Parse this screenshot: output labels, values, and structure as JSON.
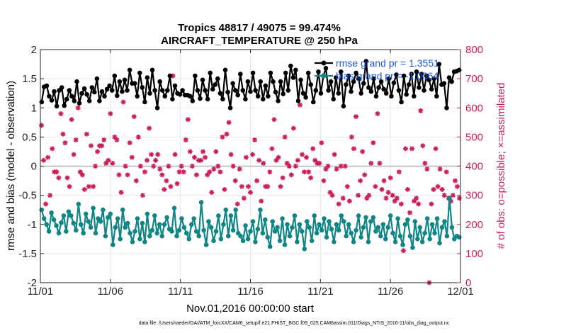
{
  "chart_data": {
    "type": "line",
    "title_line1": "Tropics 48817 / 49075 = 99.474%",
    "title_line2": "AIRCRAFT_TEMPERATURE @ 250 hPa",
    "xlabel": "Nov.01,2016 00:00:00 start",
    "ylabel_left": "rmse and bias (model - observation)",
    "ylabel_right": "# of obs: o=possible; ×=assimilated",
    "x_range": [
      0,
      30
    ],
    "ylim_left": [
      -2,
      2
    ],
    "ylim_right": [
      0,
      800
    ],
    "x_ticks": [
      {
        "value": 0,
        "label": "11/01"
      },
      {
        "value": 5,
        "label": "11/06"
      },
      {
        "value": 10,
        "label": "11/11"
      },
      {
        "value": 15,
        "label": "11/16"
      },
      {
        "value": 20,
        "label": "11/21"
      },
      {
        "value": 25,
        "label": "11/26"
      },
      {
        "value": 30,
        "label": "12/01"
      }
    ],
    "y_ticks_left": [
      "-2",
      "-1.5",
      "-1",
      "-0.5",
      "0",
      "0.5",
      "1",
      "1.5",
      "2"
    ],
    "y_ticks_right": [
      "0",
      "100",
      "200",
      "300",
      "400",
      "500",
      "600",
      "700",
      "800"
    ],
    "zero_line": 0,
    "colors": {
      "rmse": "#000000",
      "bias": "#0f8585",
      "obs": "#cc1f5a",
      "legend_text": "#1a57d6",
      "grid": "#e2e2e2",
      "zero": "#b0b0b0"
    },
    "series": [
      {
        "name": "rmse grand pr = 1.3551",
        "role": "rmse",
        "values": [
          1.1,
          1.36,
          1.38,
          1.2,
          1.13,
          1.28,
          1.03,
          1.3,
          1.35,
          1.04,
          1.15,
          1.3,
          1.2,
          1.12,
          1.45,
          1.08,
          1.25,
          1.33,
          1.23,
          1.12,
          1.35,
          1.27,
          1.5,
          1.12,
          1.28,
          1.2,
          1.32,
          1.38,
          1.3,
          1.55,
          1.21,
          1.45,
          1.28,
          1.48,
          1.3,
          1.65,
          1.42,
          1.42,
          1.2,
          1.6,
          1.35,
          1.1,
          1.52,
          1.25,
          1.65,
          1.3,
          1.0,
          1.45,
          1.3,
          1.2,
          1.3,
          1.55,
          1.15,
          1.38,
          1.25,
          1.23,
          1.3,
          1.22,
          1.22,
          1.2,
          1.12,
          1.55,
          1.3,
          1.16,
          1.48,
          1.3,
          1.15,
          1.6,
          1.32,
          1.4,
          1.5,
          1.25,
          1.15,
          1.65,
          1.27,
          1.0,
          1.42,
          1.3,
          1.22,
          1.58,
          1.3,
          1.15,
          1.45,
          1.28,
          1.6,
          1.3,
          1.2,
          1.45,
          1.15,
          1.38,
          1.2,
          1.6,
          1.45,
          1.27,
          1.12,
          1.45,
          1.24,
          1.6,
          1.3,
          1.72,
          1.52,
          1.65,
          1.12,
          1.48,
          1.25,
          1.18,
          1.6,
          1.4,
          1.1,
          1.3,
          1.62,
          1.25,
          1.55,
          1.68,
          1.3,
          1.45,
          1.15,
          1.52,
          1.25,
          1.62,
          1.03,
          1.4,
          1.55,
          1.28,
          1.45,
          1.6,
          1.5,
          1.25,
          1.42,
          1.8,
          1.35,
          1.28,
          1.5,
          1.2,
          1.35,
          1.45,
          1.32,
          1.25,
          1.5,
          1.2,
          1.43,
          1.57,
          1.3,
          1.1,
          1.55,
          1.23,
          1.4,
          1.58,
          1.2,
          1.62,
          1.35,
          1.58,
          1.3,
          1.55,
          1.48,
          1.32,
          1.5,
          1.2,
          1.75,
          1.4,
          1.42,
          1.0,
          1.52,
          1.45,
          1.62,
          1.63,
          1.65
        ]
      },
      {
        "name": "bias grand pr = -1.0064",
        "role": "bias",
        "values": [
          -0.75,
          -0.9,
          -1.0,
          -1.12,
          -0.8,
          -0.92,
          -1.02,
          -1.15,
          -0.97,
          -0.85,
          -1.12,
          -0.78,
          -0.85,
          -0.98,
          -1.1,
          -0.65,
          -1.0,
          -1.15,
          -0.82,
          -0.95,
          -1.05,
          -0.72,
          -1.15,
          -0.9,
          -0.95,
          -0.75,
          -1.2,
          -0.88,
          -0.82,
          -1.35,
          -1.05,
          -0.9,
          -1.25,
          -0.75,
          -1.05,
          -0.98,
          -1.15,
          -1.3,
          -1.12,
          -0.9,
          -1.25,
          -0.98,
          -1.3,
          -0.82,
          -1.2,
          -1.1,
          -0.85,
          -1.15,
          -1.0,
          -1.2,
          -1.0,
          -0.88,
          -1.08,
          -1.12,
          -0.72,
          -1.2,
          -1.1,
          -0.9,
          -1.05,
          -1.15,
          -1.25,
          -1.0,
          -0.9,
          -1.12,
          -1.2,
          -0.62,
          -1.1,
          -1.35,
          -0.95,
          -1.05,
          -1.28,
          -1.12,
          -0.85,
          -1.25,
          -1.0,
          -0.75,
          -1.2,
          -0.85,
          -1.1,
          -0.75,
          -1.15,
          -1.2,
          -1.28,
          -1.02,
          -1.25,
          -1.12,
          -0.95,
          -1.3,
          -1.08,
          -0.75,
          -1.15,
          -0.92,
          -1.22,
          -1.38,
          -0.95,
          -1.12,
          -1.05,
          -1.28,
          -0.9,
          -1.35,
          -1.0,
          -1.2,
          -1.05,
          -0.85,
          -1.3,
          -1.0,
          -1.12,
          -1.42,
          -0.95,
          -1.05,
          -1.28,
          -0.85,
          -1.15,
          -1.0,
          -1.1,
          -0.9,
          -1.22,
          -0.95,
          -1.08,
          -1.3,
          -1.0,
          -1.1,
          -0.85,
          -0.95,
          -1.2,
          -1.0,
          -1.15,
          -1.3,
          -1.1,
          -0.85,
          -1.22,
          -1.05,
          -0.88,
          -1.3,
          -0.95,
          -0.88,
          -1.12,
          -1.05,
          -1.2,
          -1.0,
          -1.25,
          -1.05,
          -0.85,
          -1.15,
          -1.3,
          -0.9,
          -1.2,
          -1.35,
          -1.0,
          -0.92,
          -1.2,
          -1.4,
          -0.95,
          -1.25,
          -1.05,
          -1.3,
          -1.15,
          -0.9,
          -1.25,
          -1.0,
          -1.15,
          -0.9,
          -1.32,
          -1.05,
          -0.95,
          -1.2,
          -0.55,
          -1.05,
          -1.25,
          -1.2,
          -1.22
        ]
      }
    ],
    "obs_counts": {
      "name": "# of obs",
      "possible": [
        540,
        420,
        270,
        430,
        300,
        460,
        380,
        380,
        360,
        580,
        510,
        480,
        360,
        330,
        560,
        440,
        490,
        600,
        380,
        370,
        320,
        510,
        330,
        470,
        330,
        400,
        450,
        470,
        470,
        490,
        410,
        420,
        580,
        410,
        500,
        490,
        370,
        310,
        620,
        400,
        370,
        480,
        430,
        570,
        350,
        500,
        400,
        300,
        380,
        420,
        530,
        440,
        400,
        420,
        440,
        390,
        370,
        320,
        350,
        400,
        330,
        710,
        440,
        340,
        380,
        400,
        380,
        490,
        560,
        450,
        400,
        430,
        370,
        420,
        420,
        450,
        430,
        370,
        380,
        310,
        390,
        450,
        400,
        380,
        500,
        320,
        510,
        550,
        440,
        400,
        350,
        270,
        390,
        330,
        290,
        430,
        330,
        310,
        440,
        490,
        350,
        420,
        280,
        410,
        330,
        330,
        380,
        460,
        560,
        420,
        430,
        330,
        360,
        500,
        410,
        400,
        370,
        530,
        400,
        420,
        610,
        440,
        380,
        430,
        380,
        360,
        460,
        420,
        410,
        410,
        480,
        350,
        390,
        400,
        310,
        300,
        440,
        390,
        270,
        400,
        290,
        400,
        330,
        280,
        500,
        460,
        570,
        300,
        350,
        450,
        370,
        290,
        300,
        410,
        480,
        330,
        580,
        410,
        320,
        350,
        290,
        310,
        360,
        300,
        280,
        290,
        380,
        270,
        110,
        460,
        320,
        240,
        460,
        280,
        290,
        270,
        590,
        470,
        410,
        390,
        0,
        270,
        320,
        460,
        330,
        390,
        320,
        300,
        380,
        290,
        280,
        300,
        350,
        330,
        290
      ]
    },
    "legend_position": "top-right",
    "footnote": "data file: /Users/raeder/DAI/ATM_forcXX/CAM6_setup/f.e21.FHIST_BGC.f09_025.CAM6assim.011/Diags_NTrS_2016-11/obs_diag_output.nc"
  }
}
